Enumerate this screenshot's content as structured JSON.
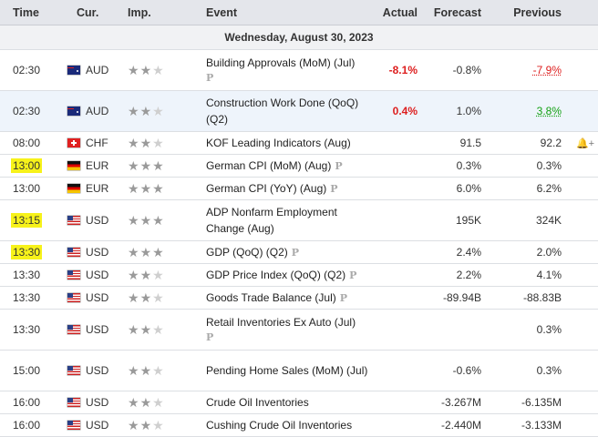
{
  "header": {
    "time": "Time",
    "cur": "Cur.",
    "imp": "Imp.",
    "event": "Event",
    "actual": "Actual",
    "forecast": "Forecast",
    "previous": "Previous"
  },
  "date_row": "Wednesday, August 30, 2023",
  "preliminary_glyph": "P",
  "alert_glyph": "🔔+",
  "colors": {
    "highlight": "#f7f21a",
    "negative": "#dd1e1e",
    "better": "#12a012"
  },
  "rows": [
    {
      "time": "02:30",
      "currency": "AUD",
      "flag": "au",
      "stars": 2,
      "event": "Building Approvals (MoM) (Jul)",
      "actual": "-8.1%",
      "forecast": "-0.8%",
      "previous": "-7.9%"
    },
    {
      "time": "02:30",
      "currency": "AUD",
      "flag": "au",
      "stars": 2,
      "event": "Construction Work Done (QoQ) (Q2)",
      "actual": "0.4%",
      "forecast": "1.0%",
      "previous": "3.8%"
    },
    {
      "time": "08:00",
      "currency": "CHF",
      "flag": "ch",
      "stars": 2,
      "event": "KOF Leading Indicators (Aug)",
      "actual": "",
      "forecast": "91.5",
      "previous": "92.2"
    },
    {
      "time": "13:00",
      "currency": "EUR",
      "flag": "de",
      "stars": 3,
      "event": "German CPI (MoM) (Aug)",
      "actual": "",
      "forecast": "0.3%",
      "previous": "0.3%"
    },
    {
      "time": "13:00",
      "currency": "EUR",
      "flag": "de",
      "stars": 3,
      "event": "German CPI (YoY) (Aug)",
      "actual": "",
      "forecast": "6.0%",
      "previous": "6.2%"
    },
    {
      "time": "13:15",
      "currency": "USD",
      "flag": "us",
      "stars": 3,
      "event": "ADP Nonfarm Employment Change (Aug)",
      "actual": "",
      "forecast": "195K",
      "previous": "324K"
    },
    {
      "time": "13:30",
      "currency": "USD",
      "flag": "us",
      "stars": 3,
      "event": "GDP (QoQ) (Q2)",
      "actual": "",
      "forecast": "2.4%",
      "previous": "2.0%"
    },
    {
      "time": "13:30",
      "currency": "USD",
      "flag": "us",
      "stars": 2,
      "event": "GDP Price Index (QoQ) (Q2)",
      "actual": "",
      "forecast": "2.2%",
      "previous": "4.1%"
    },
    {
      "time": "13:30",
      "currency": "USD",
      "flag": "us",
      "stars": 2,
      "event": "Goods Trade Balance (Jul)",
      "actual": "",
      "forecast": "-89.94B",
      "previous": "-88.83B"
    },
    {
      "time": "13:30",
      "currency": "USD",
      "flag": "us",
      "stars": 2,
      "event": "Retail Inventories Ex Auto (Jul)",
      "actual": "",
      "forecast": "",
      "previous": "0.3%"
    },
    {
      "time": "15:00",
      "currency": "USD",
      "flag": "us",
      "stars": 2,
      "event": "Pending Home Sales (MoM) (Jul)",
      "actual": "",
      "forecast": "-0.6%",
      "previous": "0.3%"
    },
    {
      "time": "16:00",
      "currency": "USD",
      "flag": "us",
      "stars": 2,
      "event": "Crude Oil Inventories",
      "actual": "",
      "forecast": "-3.267M",
      "previous": "-6.135M"
    },
    {
      "time": "16:00",
      "currency": "USD",
      "flag": "us",
      "stars": 2,
      "event": "Cushing Crude Oil Inventories",
      "actual": "",
      "forecast": "-2.440M",
      "previous": "-3.133M"
    }
  ]
}
